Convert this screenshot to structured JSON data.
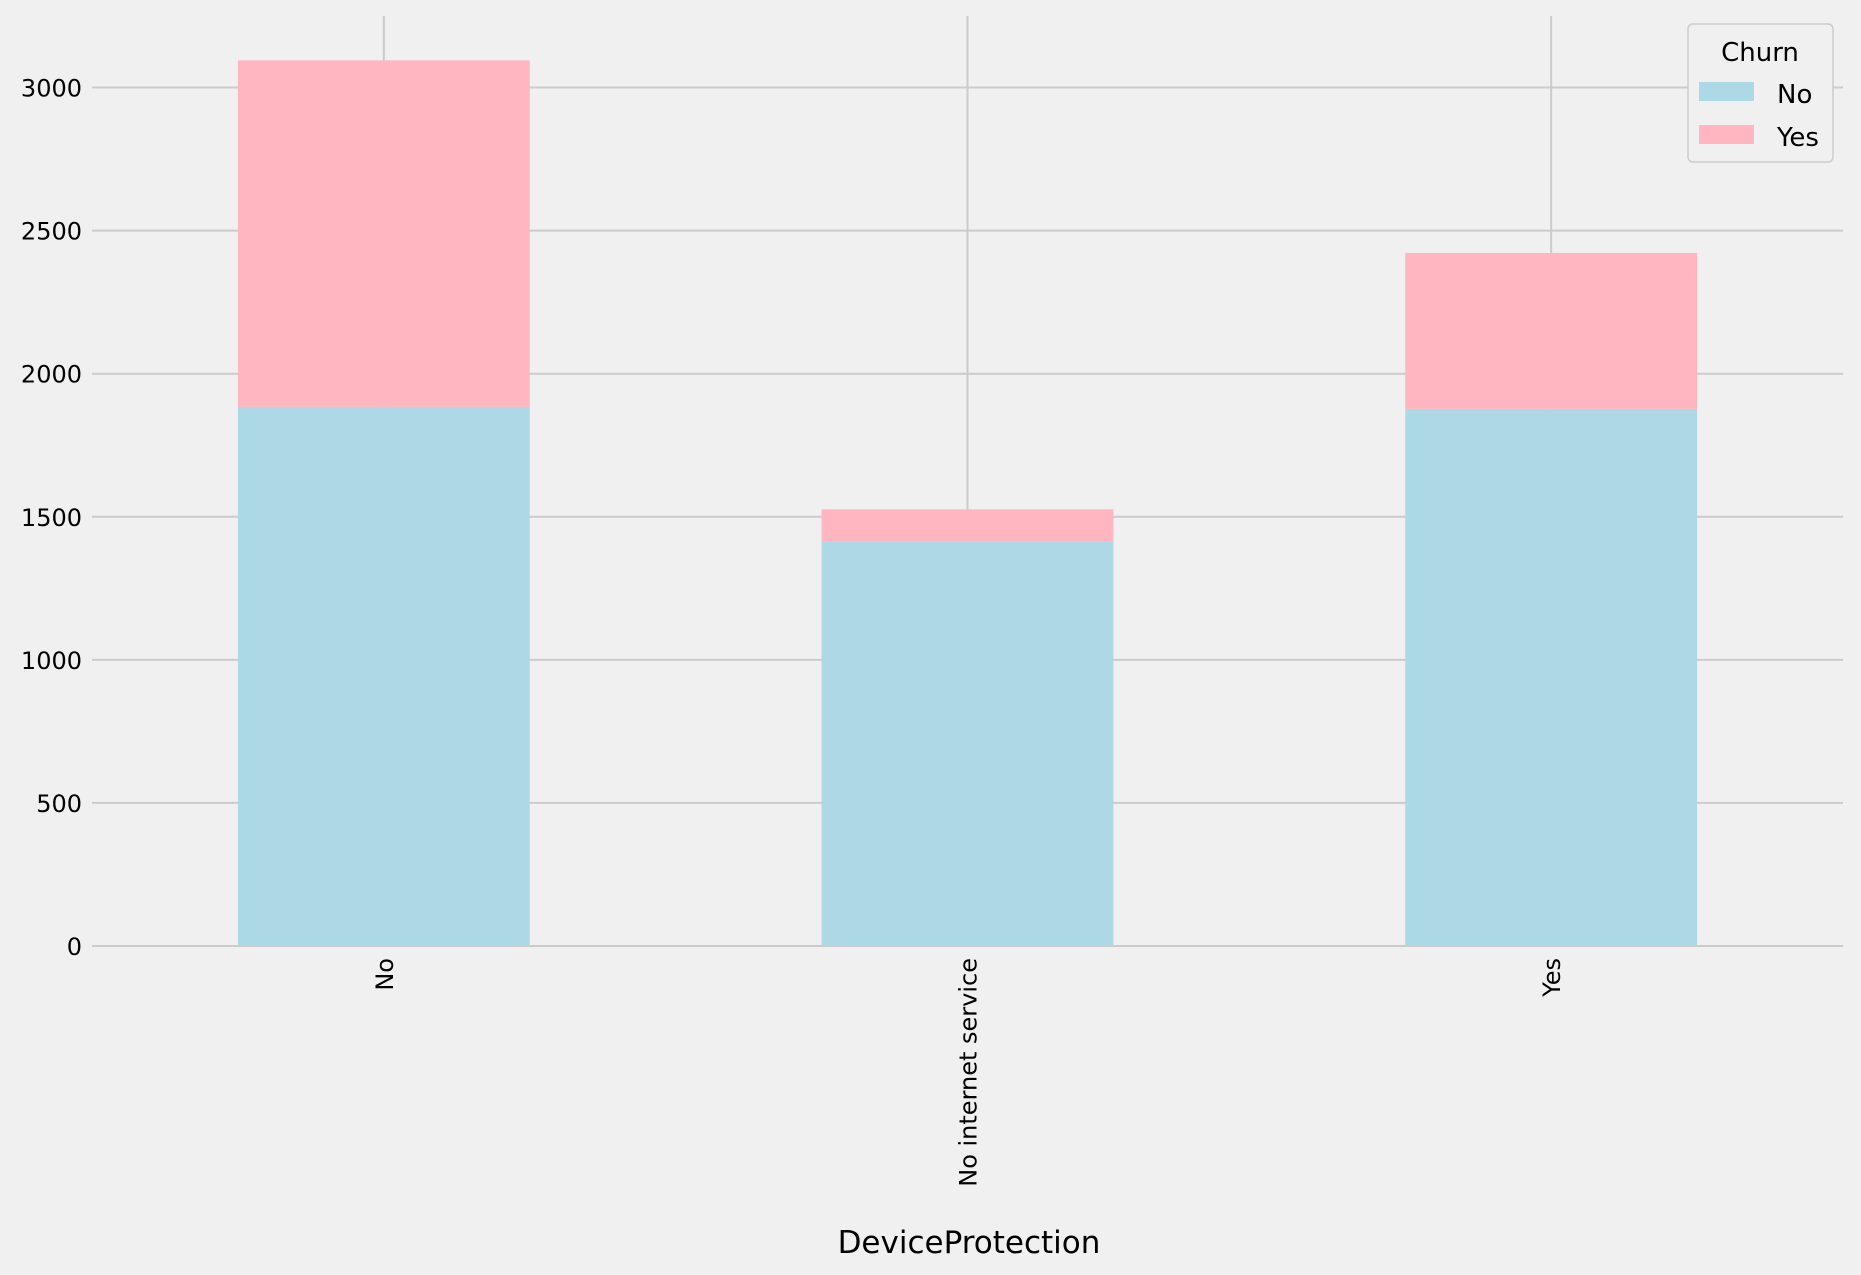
{
  "chart_data": {
    "type": "bar",
    "stacked": true,
    "categories": [
      "No",
      "No internet service",
      "Yes"
    ],
    "series": [
      {
        "name": "No",
        "values": [
          1884,
          1413,
          1877
        ],
        "color": "#add8e6"
      },
      {
        "name": "Yes",
        "values": [
          1211,
          113,
          545
        ],
        "color": "#ffb6c1"
      }
    ],
    "xlabel": "DeviceProtection",
    "ylabel": "",
    "ylim": [
      0,
      3250
    ],
    "yticks": [
      0,
      500,
      1000,
      1500,
      2000,
      2500,
      3000
    ],
    "grid": true,
    "legend": {
      "title": "Churn",
      "placement": "top-right"
    },
    "background": "#f0f0f0"
  }
}
